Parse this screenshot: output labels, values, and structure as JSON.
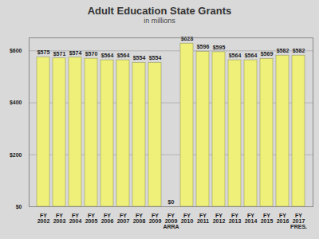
{
  "chart_data": {
    "type": "bar",
    "title": "Adult Education State Grants",
    "subtitle": "in millions",
    "categories": [
      "FY 2002",
      "FY 2003",
      "FY 2004",
      "FY 2005",
      "FY 2006",
      "FY 2007",
      "FY 2008",
      "FY 2009",
      "FY 2009 ARRA",
      "FY 2010",
      "FY 2011",
      "FY 2012",
      "FY 2013",
      "FY 2014",
      "FY 2015",
      "FY 2016",
      "FY 2017 PRES."
    ],
    "values": [
      575,
      571,
      574,
      570,
      564,
      564,
      554,
      554,
      0,
      628,
      596,
      595,
      564,
      564,
      569,
      582,
      582
    ],
    "value_labels": [
      "$575",
      "$571",
      "$574",
      "$570",
      "$564",
      "$564",
      "$554",
      "$554",
      "$0",
      "$628",
      "$596",
      "$595",
      "$564",
      "$564",
      "$569",
      "$582",
      "$582"
    ],
    "data_labels": true,
    "color": "#eef07a",
    "ylim": [
      0,
      650
    ],
    "yticks": [
      {
        "value": 0,
        "label": "$0"
      },
      {
        "value": 200,
        "label": "$200"
      },
      {
        "value": 400,
        "label": "$400"
      },
      {
        "value": 600,
        "label": "$600"
      }
    ],
    "grid": true
  }
}
